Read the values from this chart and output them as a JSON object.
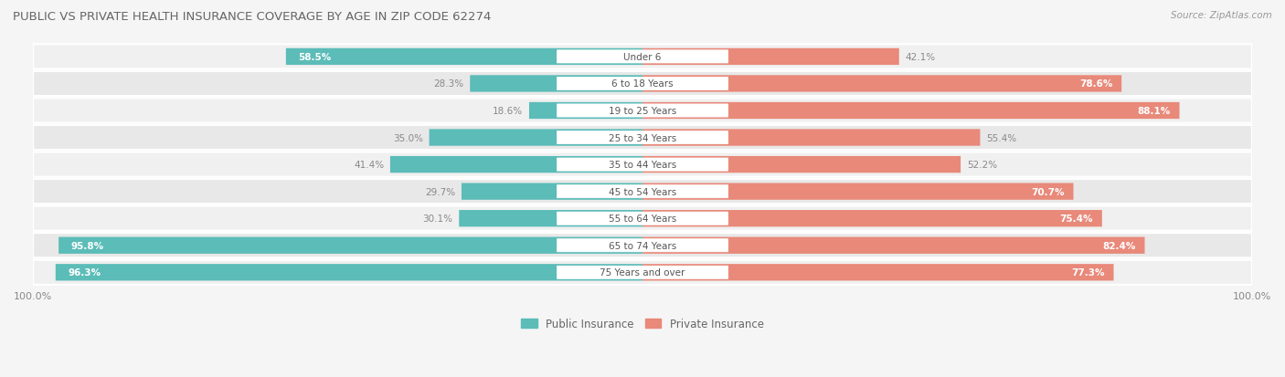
{
  "title": "PUBLIC VS PRIVATE HEALTH INSURANCE COVERAGE BY AGE IN ZIP CODE 62274",
  "source": "Source: ZipAtlas.com",
  "categories": [
    "Under 6",
    "6 to 18 Years",
    "19 to 25 Years",
    "25 to 34 Years",
    "35 to 44 Years",
    "45 to 54 Years",
    "55 to 64 Years",
    "65 to 74 Years",
    "75 Years and over"
  ],
  "public_values": [
    58.5,
    28.3,
    18.6,
    35.0,
    41.4,
    29.7,
    30.1,
    95.8,
    96.3
  ],
  "private_values": [
    42.1,
    78.6,
    88.1,
    55.4,
    52.2,
    70.7,
    75.4,
    82.4,
    77.3
  ],
  "public_color": "#5bbcb8",
  "private_color": "#e8897a",
  "public_label_inside_threshold": 50,
  "private_label_inside_threshold": 60,
  "row_bg_color_odd": "#f0f0f0",
  "row_bg_color_even": "#e8e8e8",
  "title_color": "#666666",
  "source_color": "#999999",
  "label_dark_color": "#888888",
  "label_light_color": "#ffffff",
  "max_value": 100.0,
  "legend_public": "Public Insurance",
  "legend_private": "Private Insurance",
  "fig_bg": "#f5f5f5"
}
